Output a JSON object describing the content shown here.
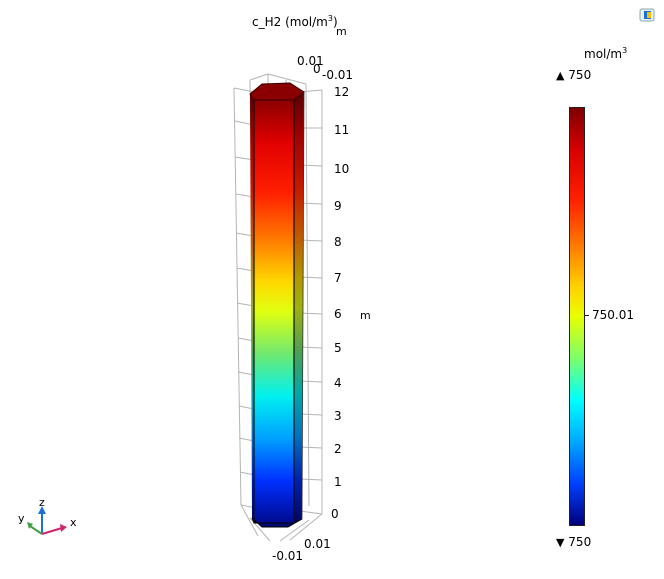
{
  "plot": {
    "title": "c_H2 (mol/m",
    "title_sup": "3",
    "title_suffix": ")"
  },
  "axes": {
    "z_ticks": [
      "0",
      "1",
      "2",
      "3",
      "4",
      "5",
      "6",
      "7",
      "8",
      "9",
      "10",
      "11",
      "12"
    ],
    "z_unit": "m",
    "top_m": "m",
    "top_x_pos": "0.01",
    "top_zero": "0",
    "top_x_neg": "-0.01",
    "bottom_pos": "0.01",
    "bottom_neg": "-0.01"
  },
  "colorbar": {
    "unit": "mol/m",
    "unit_sup": "3",
    "max_label": "750",
    "mid_label": "750.01",
    "min_label": "750",
    "max_marker": "▲",
    "min_marker": "▼"
  },
  "triad": {
    "z": "z",
    "y": "y",
    "x": "x"
  },
  "colors": {
    "top": "#7f0000",
    "bottom": "#00007a",
    "grid": "#b0b0b0"
  }
}
